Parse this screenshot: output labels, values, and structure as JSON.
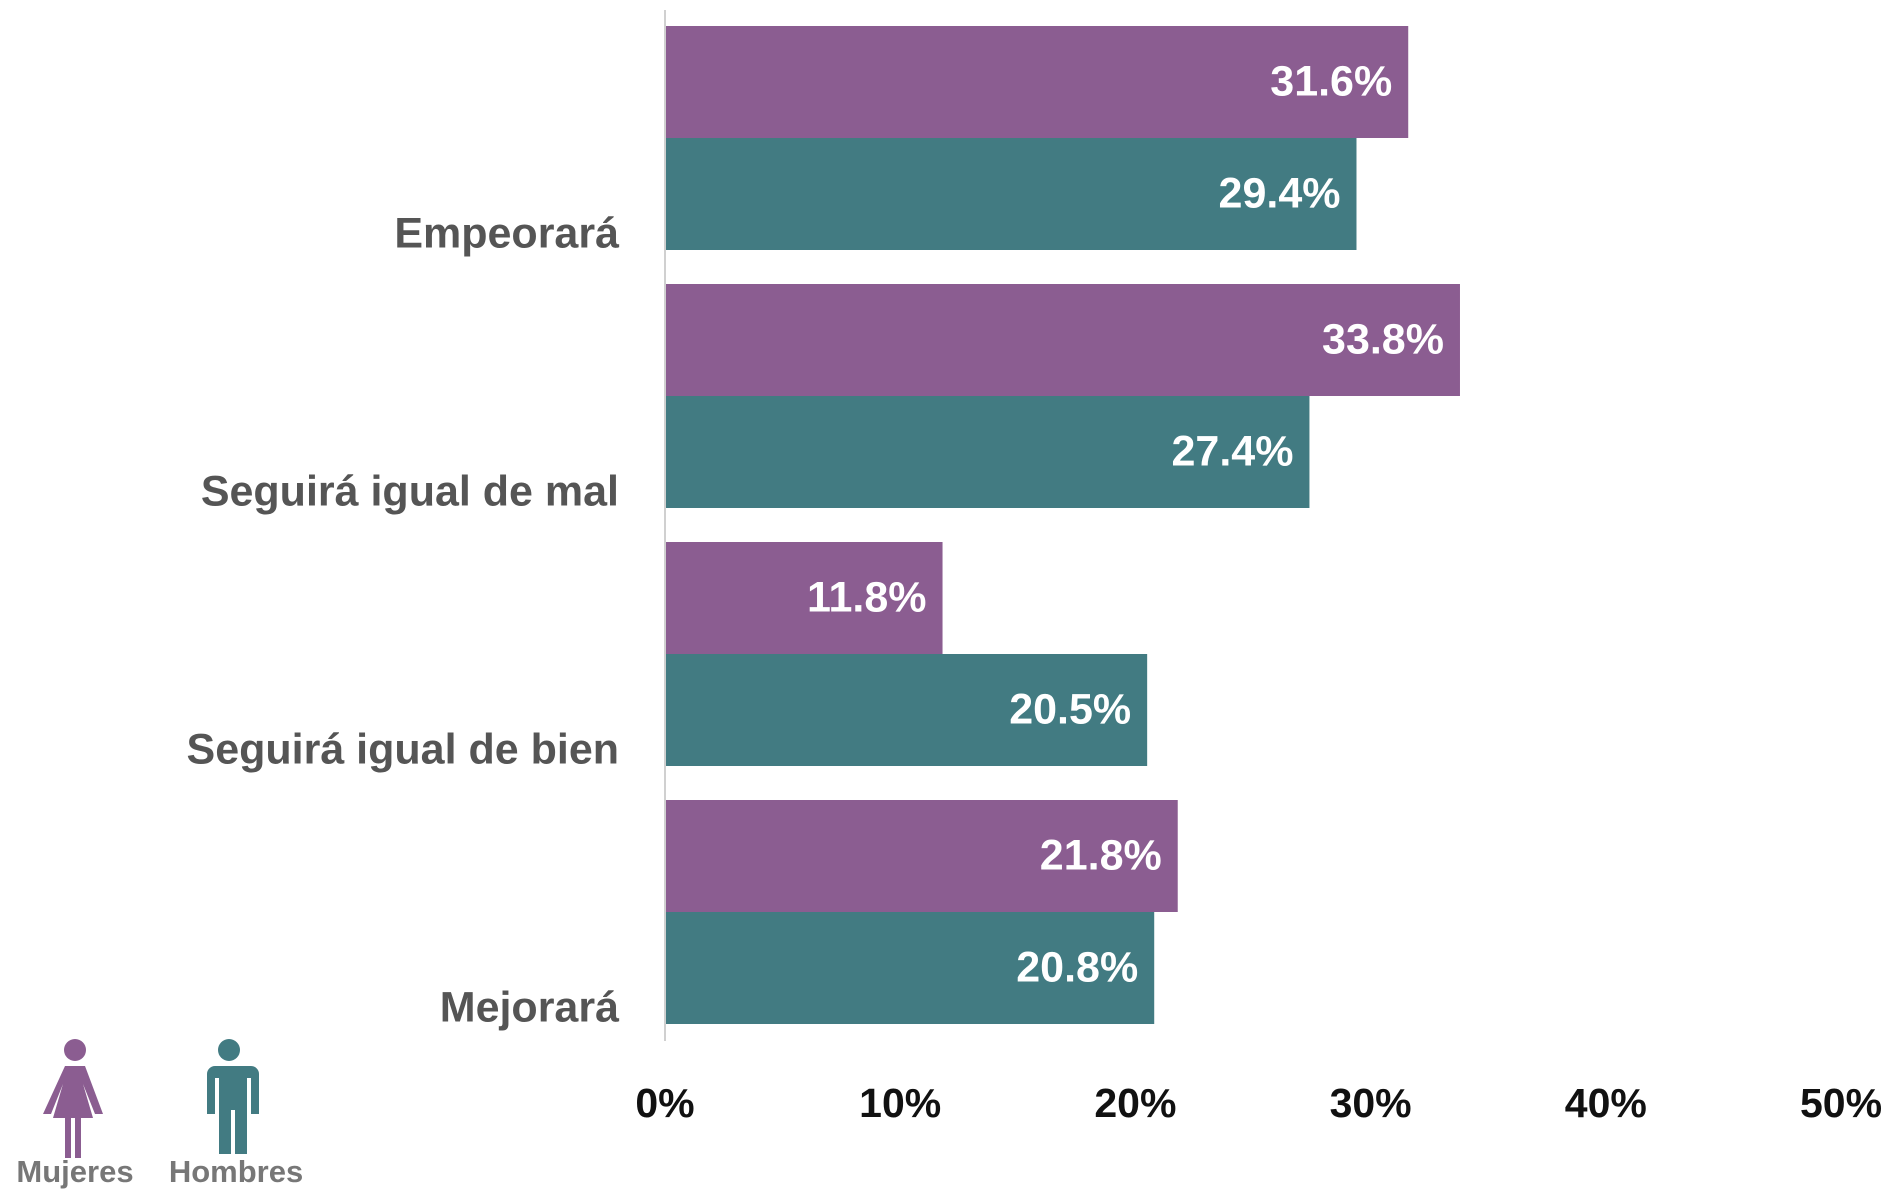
{
  "chart_data": {
    "type": "hbar",
    "categories": [
      "Empeorará",
      "Seguirá igual de mal",
      "Seguirá igual de bien",
      "Mejorará"
    ],
    "series": [
      {
        "name": "Mujeres",
        "color": "#8b5d91",
        "values": [
          31.6,
          33.8,
          11.8,
          21.8
        ],
        "value_labels": [
          "31.6%",
          "33.8%",
          "11.8%",
          "21.8%"
        ]
      },
      {
        "name": "Hombres",
        "color": "#427b82",
        "values": [
          29.4,
          27.4,
          20.5,
          20.8
        ],
        "value_labels": [
          "29.4%",
          "27.4%",
          "20.5%",
          "20.8%"
        ]
      }
    ],
    "xlim": [
      0,
      50
    ],
    "xticks": [
      {
        "value": 0,
        "label": "0%"
      },
      {
        "value": 10,
        "label": "10%"
      },
      {
        "value": 20,
        "label": "20%"
      },
      {
        "value": 30,
        "label": "30%"
      },
      {
        "value": 40,
        "label": "40%"
      },
      {
        "value": 50,
        "label": "50%"
      }
    ],
    "grid": false,
    "legend": "bottom-left"
  }
}
